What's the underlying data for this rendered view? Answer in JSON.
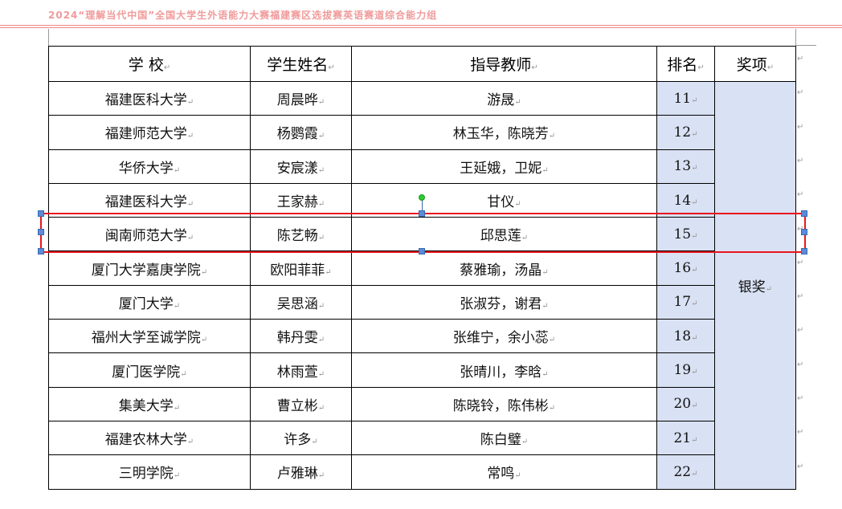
{
  "header": {
    "title": "2024“理解当代中国”全国大学生外语能力大赛福建赛区选拔赛英语赛道综合能力组"
  },
  "table": {
    "columns": [
      "学  校",
      "学生姓名",
      "指导教师",
      "排名",
      "奖项"
    ],
    "award": "银奖",
    "rows": [
      [
        "福建医科大学",
        "周晨晔",
        "游晟",
        "11"
      ],
      [
        "福建师范大学",
        "杨鹦霞",
        "林玉华，陈晓芳",
        "12"
      ],
      [
        "华侨大学",
        "安宸漾",
        "王延娥，卫妮",
        "13"
      ],
      [
        "福建医科大学",
        "王家赫",
        "甘仪",
        "14"
      ],
      [
        "闽南师范大学",
        "陈艺畅",
        "邱思莲",
        "15"
      ],
      [
        "厦门大学嘉庚学院",
        "欧阳菲菲",
        "蔡雅瑜，汤晶",
        "16"
      ],
      [
        "厦门大学",
        "吴思涵",
        "张淑芬，谢君",
        "17"
      ],
      [
        "福州大学至诚学院",
        "韩丹雯",
        "张维宁，余小蕊",
        "18"
      ],
      [
        "厦门医学院",
        "林雨萱",
        "张晴川，李晗",
        "19"
      ],
      [
        "集美大学",
        "曹立彬",
        "陈晓铃，陈伟彬",
        "20"
      ],
      [
        "福建农林大学",
        "许多",
        "陈白璧",
        "21"
      ],
      [
        "三明学院",
        "卢雅琳",
        "常鸣",
        "22"
      ]
    ]
  },
  "colors": {
    "selection": "#e8161d",
    "highlight": "#d9e1f4",
    "header_text": "#f19a9a"
  }
}
